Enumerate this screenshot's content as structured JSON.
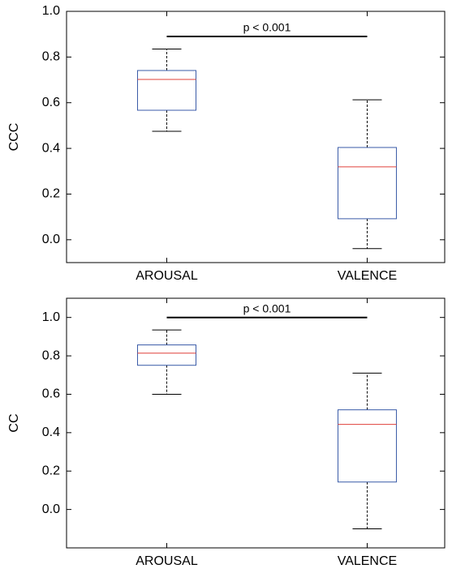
{
  "chart_data": [
    {
      "type": "box",
      "ylabel": "CCC",
      "categories": [
        "AROUSAL",
        "VALENCE"
      ],
      "ylim": [
        -0.1,
        1.0
      ],
      "yticks": [
        {
          "value": 0,
          "label": "0.0"
        },
        0.2,
        0.4,
        0.6,
        0.8,
        {
          "value": 1,
          "label": "1.0"
        }
      ],
      "box_color": "#3a5ba8",
      "median_color": "#e0403a",
      "boxes": [
        {
          "whisker_low": 0.475,
          "q1": 0.567,
          "median": 0.702,
          "q3": 0.741,
          "whisker_high": 0.835
        },
        {
          "whisker_low": -0.039,
          "q1": 0.092,
          "median": 0.319,
          "q3": 0.404,
          "whisker_high": 0.613
        }
      ],
      "annotation": {
        "text": "p < 0.001",
        "y": 0.89
      }
    },
    {
      "type": "box",
      "ylabel": "CC",
      "categories": [
        "AROUSAL",
        "VALENCE"
      ],
      "ylim": [
        -0.2,
        1.1
      ],
      "yticks": [
        {
          "value": 0,
          "label": "0.0"
        },
        0.2,
        0.4,
        0.6,
        0.8,
        {
          "value": 1,
          "label": "1.0"
        }
      ],
      "box_color": "#3a5ba8",
      "median_color": "#e0403a",
      "boxes": [
        {
          "whisker_low": 0.6,
          "q1": 0.751,
          "median": 0.814,
          "q3": 0.857,
          "whisker_high": 0.935
        },
        {
          "whisker_low": -0.101,
          "q1": 0.143,
          "median": 0.443,
          "q3": 0.519,
          "whisker_high": 0.71
        }
      ],
      "annotation": {
        "text": "p < 0.001",
        "y": 1.0
      }
    }
  ]
}
